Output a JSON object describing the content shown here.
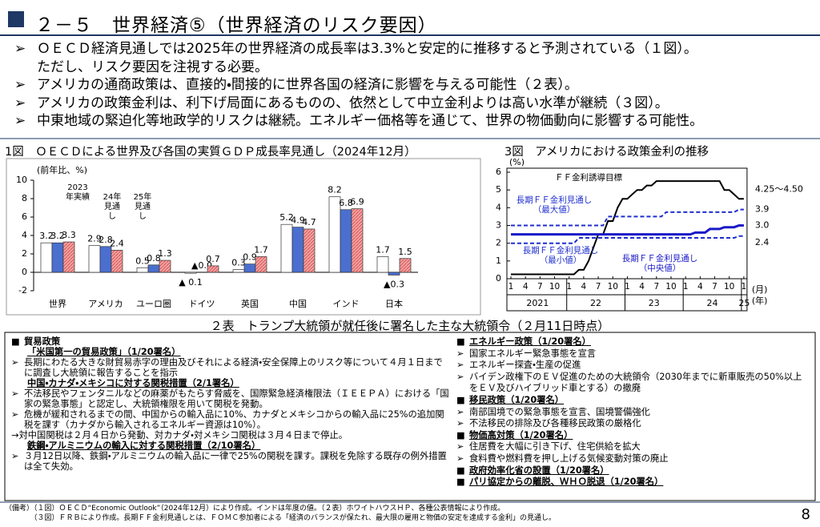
{
  "header": {
    "title": "２－５　世界経済⑤（世界経済のリスク要因）"
  },
  "bullets": [
    [
      "ＯＥＣＤ経済見通しでは2025年の世界経済の成長率は3.3%と安定的に推移すると予測されている（１図）。",
      "ただし、リスク要因を注視する必要。"
    ],
    [
      "アメリカの通商政策は、直接的・間接的に世界各国の経済に影響を与える可能性（２表）。"
    ],
    [
      "アメリカの政策金利は、利下げ局面にあるものの、依然として中立金利よりは高い水準が継続（３図）。"
    ],
    [
      "中東地域の緊迫化等地政学的リスクは継続。エネルギー価格等を通じて、世界の物価動向に影響する可能性。"
    ]
  ],
  "chart_data": [
    {
      "type": "bar",
      "title": "1図　ＯＥＣＤによる世界及び各国の実質ＧＤＰ成長率見通し（2024年12月）",
      "ylabel": "(前年比、%)",
      "categories": [
        "世界",
        "アメリカ",
        "ユーロ圏",
        "ドイツ",
        "英国",
        "中国",
        "インド",
        "日本"
      ],
      "series": [
        {
          "name": "2023年実績",
          "color": "#ffffff",
          "values": [
            3.2,
            2.9,
            0.5,
            -0.1,
            0.3,
            5.2,
            8.2,
            1.7
          ],
          "value_labels": [
            "3.2",
            "2.9",
            "0.5",
            "▲ 0.1",
            "0.3",
            "5.2",
            "8.2",
            "1.7"
          ]
        },
        {
          "name": "24年見通し",
          "color": "#4a6fcf",
          "values": [
            3.2,
            2.8,
            0.8,
            0.0,
            0.9,
            4.9,
            6.8,
            -0.3
          ],
          "value_labels": [
            "3.2",
            "2.8",
            "0.8",
            "▲0.0",
            "0.9",
            "4.9",
            "6.8",
            "▲0.3"
          ]
        },
        {
          "name": "25年見通し",
          "color": "#f4a3a3",
          "pattern": "hatch",
          "values": [
            3.3,
            2.4,
            1.3,
            0.7,
            1.7,
            4.7,
            6.9,
            1.5
          ],
          "value_labels": [
            "3.3",
            "2.4",
            "1.3",
            "0.7",
            "1.7",
            "4.7",
            "6.9",
            "1.5"
          ]
        }
      ],
      "ylim": [
        -2,
        10
      ],
      "yticks": [
        -2,
        0,
        2,
        4,
        6,
        8,
        10
      ],
      "grid": false
    },
    {
      "type": "line",
      "title": "3図　アメリカにおける政策金利の推移",
      "ylabel": "(%)",
      "x": [
        "2021-01",
        "2021-02",
        "2021-03",
        "2021-04",
        "2021-05",
        "2021-06",
        "2021-07",
        "2021-08",
        "2021-09",
        "2021-10",
        "2021-11",
        "2021-12",
        "2022-01",
        "2022-02",
        "2022-03",
        "2022-04",
        "2022-05",
        "2022-06",
        "2022-07",
        "2022-08",
        "2022-09",
        "2022-10",
        "2022-11",
        "2022-12",
        "2023-01",
        "2023-02",
        "2023-03",
        "2023-04",
        "2023-05",
        "2023-06",
        "2023-07",
        "2023-08",
        "2023-09",
        "2023-10",
        "2023-11",
        "2023-12",
        "2024-01",
        "2024-02",
        "2024-03",
        "2024-04",
        "2024-05",
        "2024-06",
        "2024-07",
        "2024-08",
        "2024-09",
        "2024-10",
        "2024-11",
        "2024-12",
        "2025-01"
      ],
      "series": [
        {
          "name": "ＦＦ金利誘導目標",
          "color": "#000000",
          "line_style": "solid",
          "end_label": "4.25～4.50",
          "values": [
            0.25,
            0.25,
            0.25,
            0.25,
            0.25,
            0.25,
            0.25,
            0.25,
            0.25,
            0.25,
            0.25,
            0.25,
            0.25,
            0.25,
            0.5,
            0.5,
            1.0,
            1.75,
            2.5,
            2.5,
            3.25,
            3.25,
            4.0,
            4.5,
            4.5,
            4.75,
            5.0,
            5.0,
            5.25,
            5.25,
            5.5,
            5.5,
            5.5,
            5.5,
            5.5,
            5.5,
            5.5,
            5.5,
            5.5,
            5.5,
            5.5,
            5.5,
            5.5,
            5.5,
            5.0,
            5.0,
            4.75,
            4.5,
            4.5
          ]
        },
        {
          "name": "長期ＦＦ金利見通し（最大値）",
          "color": "#1f2fd0",
          "line_style": "dashed",
          "end_label": "3.9",
          "values": [
            3.0,
            3.0,
            3.0,
            3.0,
            3.0,
            3.0,
            3.0,
            3.0,
            3.0,
            3.0,
            3.0,
            3.0,
            3.0,
            3.0,
            3.0,
            3.0,
            3.0,
            3.0,
            3.0,
            3.0,
            3.5,
            3.5,
            3.5,
            3.5,
            3.5,
            3.5,
            3.5,
            3.5,
            3.5,
            3.5,
            3.5,
            3.5,
            3.75,
            3.75,
            3.75,
            3.75,
            3.75,
            3.75,
            3.75,
            3.75,
            3.75,
            3.75,
            3.75,
            3.75,
            3.75,
            3.75,
            3.75,
            3.9,
            3.9
          ]
        },
        {
          "name": "長期ＦＦ金利見通し（最小値）",
          "color": "#1f2fd0",
          "line_style": "dashed",
          "end_label": "2.4",
          "values": [
            2.0,
            2.0,
            2.0,
            2.0,
            2.0,
            2.0,
            2.0,
            2.0,
            2.0,
            2.0,
            2.0,
            2.0,
            2.0,
            2.0,
            2.3,
            2.3,
            2.3,
            2.3,
            2.3,
            2.3,
            2.3,
            2.3,
            2.3,
            2.3,
            2.3,
            2.3,
            2.3,
            2.3,
            2.3,
            2.3,
            2.3,
            2.3,
            2.3,
            2.3,
            2.3,
            2.3,
            2.3,
            2.3,
            2.3,
            2.3,
            2.3,
            2.3,
            2.3,
            2.3,
            2.3,
            2.3,
            2.3,
            2.4,
            2.4
          ]
        },
        {
          "name": "長期ＦＦ金利見通し（中央値）",
          "color": "#1a1ac8",
          "line_style": "bold",
          "end_label": "3.0",
          "values": [
            2.5,
            2.5,
            2.5,
            2.5,
            2.5,
            2.5,
            2.5,
            2.5,
            2.5,
            2.5,
            2.5,
            2.5,
            2.5,
            2.5,
            2.5,
            2.5,
            2.5,
            2.5,
            2.5,
            2.5,
            2.5,
            2.5,
            2.5,
            2.5,
            2.5,
            2.5,
            2.5,
            2.5,
            2.5,
            2.5,
            2.5,
            2.5,
            2.5,
            2.5,
            2.5,
            2.5,
            2.5,
            2.5,
            2.6,
            2.6,
            2.6,
            2.8,
            2.8,
            2.8,
            2.9,
            2.9,
            2.9,
            3.0,
            3.0
          ]
        }
      ],
      "xticks": [
        {
          "value": "2021-01",
          "label": "1"
        },
        {
          "value": "2021-04",
          "label": "4"
        },
        {
          "value": "2021-07",
          "label": "7"
        },
        {
          "value": "2021-10",
          "label": "10"
        },
        {
          "value": "2022-01",
          "label": "1"
        },
        {
          "value": "2022-04",
          "label": "4"
        },
        {
          "value": "2022-07",
          "label": "7"
        },
        {
          "value": "2022-10",
          "label": "10"
        },
        {
          "value": "2023-01",
          "label": "1"
        },
        {
          "value": "2023-04",
          "label": "4"
        },
        {
          "value": "2023-07",
          "label": "7"
        },
        {
          "value": "2023-10",
          "label": "10"
        },
        {
          "value": "2024-01",
          "label": "1"
        },
        {
          "value": "2024-04",
          "label": "4"
        },
        {
          "value": "2024-07",
          "label": "7"
        },
        {
          "value": "2024-10",
          "label": "10"
        },
        {
          "value": "2025-01",
          "label": "1"
        }
      ],
      "year_labels": [
        "2021",
        "22",
        "23",
        "24",
        "25"
      ],
      "x_units": [
        "(月)",
        "(年)"
      ],
      "ylim": [
        0,
        6
      ],
      "yticks": [
        0,
        1,
        2,
        3,
        4,
        5,
        6
      ]
    }
  ],
  "table": {
    "title": "２表　トランプ大統領が就任後に署名した主な大統領令（２月11日時点）",
    "left": [
      {
        "kind": "head",
        "text": "貿易政策"
      },
      {
        "kind": "sub",
        "text": "「米国第一の貿易政策」（1/20署名）"
      },
      {
        "kind": "bullet",
        "text": "長期にわたる大きな財貿易赤字の理由及びそれによる経済・安全保障上のリスク等について４月１日までに調査し大統領に報告することを指示"
      },
      {
        "kind": "sub",
        "text": "中国・カナダ・メキシコに対する関税措置（2/1署名）"
      },
      {
        "kind": "bullet",
        "text": "不法移民やフェンタニルなどの麻薬がもたらす脅威を、国際緊急経済権限法（ＩＥＥＰＡ）における「国家の緊急事態」と認定し、大統領権限を用いて関税を発動。"
      },
      {
        "kind": "bullet",
        "text": "危機が緩和されるまでの間、中国からの輸入品に10%、カナダとメキシコからの輸入品に25%の追加関税を課す（カナダから輸入されるエネルギー資源は10%）。"
      },
      {
        "kind": "note",
        "text": "→対中国関税は２月４日から発動、対カナダ・対メキシコ関税は３月４日まで停止。"
      },
      {
        "kind": "sub",
        "text": "鉄鋼・アルミニウムの輸入に対する関税措置（2/10署名）"
      },
      {
        "kind": "bullet",
        "text": "３月12日以降、鉄鋼・アルミニウムの輸入品に一律で25%の関税を課す。課税を免除する既存の例外措置は全て失効。"
      }
    ],
    "right": [
      {
        "kind": "headu",
        "text": "エネルギー政策（1/20署名）"
      },
      {
        "kind": "bullet",
        "text": "国家エネルギー緊急事態を宣言"
      },
      {
        "kind": "bullet",
        "text": "エネルギー探査・生産の促進"
      },
      {
        "kind": "bullet",
        "text": "バイデン政権下のＥＶ促進のための大統領令（2030年までに新車販売の50%以上をＥＶ及びハイブリッド車とする）の撤廃"
      },
      {
        "kind": "headu",
        "text": "移民政策（1/20署名）"
      },
      {
        "kind": "bullet",
        "text": "南部国境での緊急事態を宣言、国境警備強化"
      },
      {
        "kind": "bullet",
        "text": "不法移民の排除及び各種移民政策の厳格化"
      },
      {
        "kind": "headu",
        "text": "物価高対策（1/20署名）"
      },
      {
        "kind": "bullet",
        "text": "住居費を大幅に引き下げ、住宅供給を拡大"
      },
      {
        "kind": "bullet",
        "text": "食料費や燃料費を押し上げる気候変動対策の廃止"
      },
      {
        "kind": "headu",
        "text": "政府効率化省の設置（1/20署名）"
      },
      {
        "kind": "headu",
        "text": "パリ協定からの離脱、ＷＨＯ脱退（1/20署名）"
      }
    ]
  },
  "footer": {
    "notes": [
      "（備考）（１図）ＯＥＣＤ“Economic Outlook”（2024年12月）により作成。インドは年度の値。（２表）ホワイトハウスＨＰ、各種公表情報により作成。",
      "　　　　（３図）ＦＲＢにより作成。長期ＦＦ金利見通しとは、ＦＯＭＣ参加者による「経済のバランスが保たれ、最大限の雇用と物価の安定を達成する金利」の見通し。"
    ],
    "page": "8"
  }
}
